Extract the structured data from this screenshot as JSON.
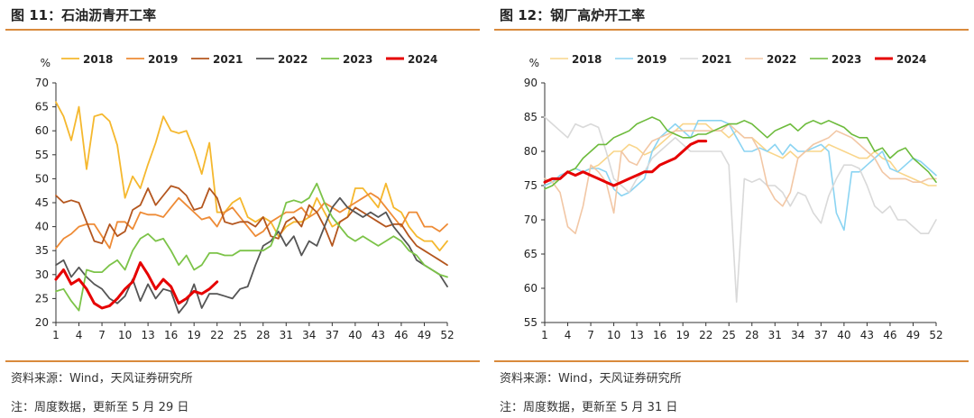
{
  "chart_data": [
    {
      "type": "line",
      "title": "图 11：石油沥青开工率",
      "ylabel": "%",
      "xlabel": "",
      "ylim": [
        20,
        70
      ],
      "yticks": [
        20,
        25,
        30,
        35,
        40,
        45,
        50,
        55,
        60,
        65,
        70
      ],
      "xticks": [
        1,
        4,
        7,
        10,
        13,
        16,
        19,
        22,
        25,
        28,
        31,
        34,
        37,
        40,
        43,
        46,
        49,
        52
      ],
      "xlim": [
        1,
        52
      ],
      "grid": false,
      "legend_position": "top",
      "source": "资料来源：Wind，天风证券研究所",
      "footnote": "注：周度数据，更新至 5 月 29 日",
      "series": [
        {
          "name": "2018",
          "color": "#F5B82E",
          "width": 1.8,
          "values": [
            66,
            63,
            58,
            65,
            52,
            63,
            63.5,
            62,
            57,
            46,
            50.5,
            48,
            53,
            57.5,
            63,
            60,
            59.5,
            60,
            56,
            51,
            57.5,
            43,
            43,
            45,
            46,
            42,
            41,
            42,
            41,
            38,
            40,
            41,
            41,
            42,
            46,
            43,
            40,
            41,
            42,
            48,
            48,
            46,
            44,
            49,
            44,
            43,
            40,
            38,
            37,
            37,
            35,
            37
          ]
        },
        {
          "name": "2019",
          "color": "#EE8B36",
          "width": 1.8,
          "values": [
            35.5,
            37.5,
            38.5,
            40,
            40.5,
            40.5,
            38,
            35.5,
            41,
            41,
            39.5,
            43,
            42.5,
            42.5,
            42,
            44,
            46,
            44.5,
            43,
            41.5,
            42,
            40,
            43,
            44,
            42,
            40,
            38,
            39,
            41,
            42,
            43,
            43,
            44,
            42,
            43,
            45,
            44,
            43,
            44,
            45,
            46,
            47,
            46,
            44,
            42,
            40,
            43,
            43,
            40,
            40,
            39,
            40.5
          ]
        },
        {
          "name": "2021",
          "color": "#B4561E",
          "width": 1.8,
          "values": [
            46.5,
            45,
            45.5,
            45,
            41,
            37,
            36.5,
            40.5,
            38,
            39,
            43.5,
            44.5,
            48,
            44.5,
            46.5,
            48.5,
            48,
            46.5,
            43.5,
            44,
            48,
            46,
            41,
            40.5,
            41,
            41,
            40,
            42,
            38,
            37.5,
            41,
            42,
            40,
            44.5,
            43,
            40,
            36,
            41,
            42,
            44,
            43,
            42,
            41,
            40,
            40.5,
            40.5,
            38,
            36,
            35,
            34,
            33,
            32
          ]
        },
        {
          "name": "2022",
          "color": "#555555",
          "width": 1.8,
          "values": [
            32,
            33,
            29.5,
            31.5,
            29.5,
            28,
            27,
            25,
            24,
            25.5,
            29,
            24.5,
            28,
            25,
            27,
            26.5,
            22,
            24,
            28,
            23,
            26,
            26,
            25.5,
            25,
            27,
            27.5,
            32,
            36,
            37,
            39,
            36,
            38,
            34,
            37,
            36,
            40,
            44,
            46,
            44,
            43,
            42,
            43,
            42,
            43,
            40,
            38,
            36,
            33,
            32,
            31,
            30,
            27.5
          ]
        },
        {
          "name": "2023",
          "color": "#7CC348",
          "width": 1.8,
          "values": [
            26.5,
            27,
            24.5,
            22.5,
            31,
            30.5,
            30.5,
            32,
            33,
            31,
            35,
            37.5,
            38.5,
            37,
            37.5,
            35,
            32,
            34,
            31,
            32,
            34.5,
            34.5,
            34,
            34,
            35,
            35,
            35,
            35,
            36,
            40,
            45,
            45.5,
            45,
            46,
            49,
            45,
            42,
            40,
            38,
            37,
            38,
            37,
            36,
            37,
            38,
            37,
            35,
            34,
            32,
            31,
            30,
            29.5
          ]
        },
        {
          "name": "2024",
          "color": "#E60000",
          "width": 3,
          "values": [
            29,
            31,
            28,
            29,
            27,
            24,
            23,
            23.5,
            25,
            27,
            28.5,
            32.5,
            30,
            27,
            29,
            27.5,
            24,
            25,
            26.5,
            26,
            27,
            28.5
          ]
        }
      ]
    },
    {
      "type": "line",
      "title": "图 12：钢厂高炉开工率",
      "ylabel": "%",
      "xlabel": "",
      "ylim": [
        55,
        90
      ],
      "yticks": [
        55,
        60,
        65,
        70,
        75,
        80,
        85,
        90
      ],
      "xticks": [
        1,
        4,
        7,
        10,
        13,
        16,
        19,
        22,
        25,
        28,
        31,
        34,
        37,
        40,
        43,
        46,
        49,
        52
      ],
      "xlim": [
        1,
        52
      ],
      "grid": false,
      "legend_position": "top",
      "source": "资料来源：Wind，天风证券研究所",
      "footnote": "注：周度数据，更新至 5 月 31 日",
      "series": [
        {
          "name": "2018",
          "color": "#F9D58A",
          "width": 1.6,
          "values": [
            75,
            75.5,
            76,
            77,
            77.5,
            77,
            77.5,
            78,
            79,
            80,
            80,
            81,
            80.5,
            79.5,
            80,
            81,
            82,
            83,
            84,
            84,
            84,
            84,
            83,
            83,
            82,
            83,
            82,
            82,
            81,
            80,
            79.5,
            79,
            80,
            79,
            80,
            80,
            80,
            81,
            80.5,
            80,
            79.5,
            79,
            79,
            80,
            79,
            78.5,
            77,
            76.5,
            76,
            75.5,
            75,
            75
          ]
        },
        {
          "name": "2019",
          "color": "#8BD4F2",
          "width": 1.6,
          "values": [
            75,
            75.5,
            76.5,
            77,
            77.5,
            77,
            77.5,
            77.5,
            77,
            74.5,
            73.5,
            74,
            75,
            76,
            80,
            82,
            83,
            84,
            83,
            82,
            84.5,
            84.5,
            84.5,
            84.5,
            84,
            82,
            80,
            80,
            80.5,
            80,
            81,
            79.5,
            81,
            80,
            80,
            80.5,
            81,
            80,
            71,
            68.5,
            77,
            77,
            78,
            79,
            80,
            77.5,
            77,
            78,
            79,
            78.5,
            77.5,
            76.5
          ]
        },
        {
          "name": "2021",
          "color": "#D9D9D9",
          "width": 1.6,
          "values": [
            85,
            84,
            83,
            82,
            84,
            83.5,
            84,
            83.5,
            80,
            76,
            75,
            74,
            76,
            77,
            79,
            80,
            81,
            82,
            81,
            80,
            80,
            80,
            80,
            80,
            78,
            58,
            76,
            75.5,
            76,
            75,
            75,
            74,
            72,
            74,
            73.5,
            71,
            69.5,
            73.5,
            76,
            78,
            78,
            77.5,
            75,
            72,
            71,
            72,
            70,
            70,
            69,
            68,
            68,
            70
          ]
        },
        {
          "name": "2022",
          "color": "#F2C7A5",
          "width": 1.6,
          "values": [
            76,
            75.5,
            74,
            69,
            68,
            72,
            78,
            77,
            75.5,
            71,
            80,
            78.5,
            78,
            80,
            81.5,
            82,
            82.5,
            83,
            83,
            83,
            83,
            83,
            83,
            83,
            84,
            83,
            82,
            82,
            80,
            75,
            73,
            72,
            74,
            79,
            80,
            81,
            81.5,
            82,
            83,
            82.5,
            82,
            81,
            80,
            79,
            77,
            76,
            76,
            76,
            75.5,
            75.5,
            76,
            76
          ]
        },
        {
          "name": "2023",
          "color": "#6DBB3C",
          "width": 1.6,
          "values": [
            74.5,
            75,
            76,
            77,
            77.5,
            79,
            80,
            81,
            81,
            82,
            82.5,
            83,
            84,
            84.5,
            85,
            84.5,
            83,
            82.5,
            82,
            82,
            82.5,
            82.5,
            83,
            83.5,
            84,
            84,
            84.5,
            84,
            83,
            82,
            83,
            83.5,
            84,
            83,
            84,
            84.5,
            84,
            84.5,
            84,
            83.5,
            82.5,
            82,
            82,
            80,
            80.5,
            79,
            80,
            80.5,
            79,
            78,
            77,
            75.5
          ]
        },
        {
          "name": "2024",
          "color": "#E60000",
          "width": 3,
          "values": [
            75.5,
            76,
            76,
            77,
            76.5,
            77,
            76.5,
            76,
            75.5,
            75,
            75.5,
            76,
            76.5,
            77,
            77,
            78,
            78.5,
            79,
            80,
            81,
            81.5,
            81.5
          ]
        }
      ]
    }
  ]
}
